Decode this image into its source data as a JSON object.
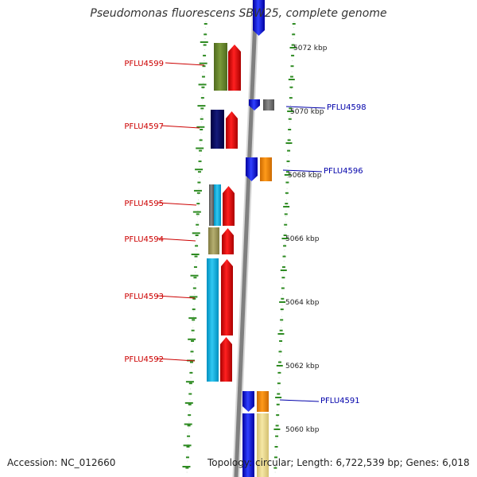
{
  "title": "Pseudomonas fluorescens SBW25, complete genome",
  "footer": {
    "accession": "Accession: NC_012660",
    "topology": "Topology: circular; Length: 6,722,539 bp; Genes: 6,018"
  },
  "colors": {
    "backbone": "#808080",
    "tick": "#2e8b22",
    "left_label": "#cc0000",
    "right_label": "#0000aa",
    "cds_red": "#ee0000",
    "cds_blue": "#1010ee"
  },
  "scale_labels": [
    "5072 kbp",
    "5070 kbp",
    "5068 kbp",
    "5066 kbp",
    "5064 kbp",
    "5062 kbp",
    "5060 kbp"
  ],
  "genes_left": [
    "PFLU4599",
    "PFLU4597",
    "PFLU4595",
    "PFLU4594",
    "PFLU4593",
    "PFLU4592"
  ],
  "genes_right": [
    "PFLU4598",
    "PFLU4596",
    "PFLU4591"
  ]
}
